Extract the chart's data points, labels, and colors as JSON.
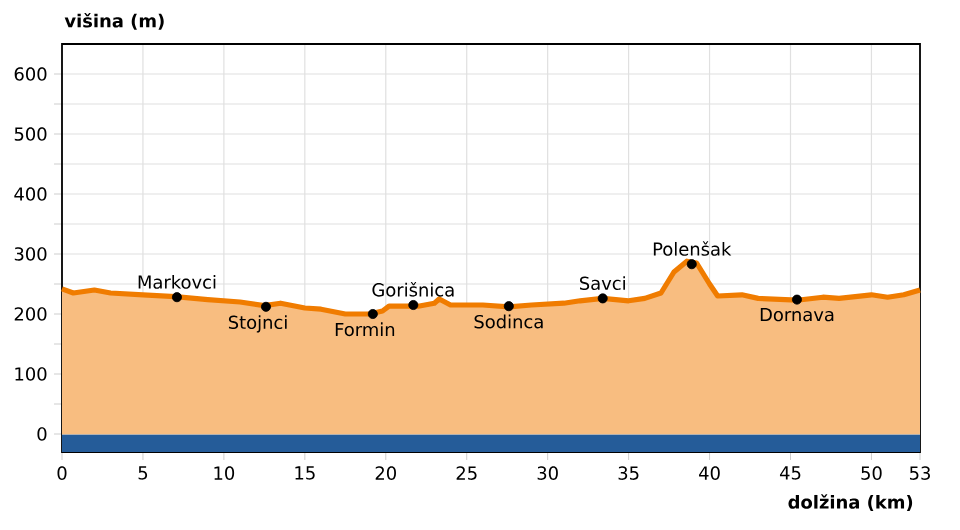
{
  "chart_data": {
    "type": "area",
    "xlabel": "dolžina (km)",
    "ylabel": "višina (m)",
    "x": [
      0,
      0.7,
      2,
      3,
      5,
      7,
      9,
      11,
      12.5,
      13.5,
      15,
      16,
      17.5,
      19,
      19.8,
      20.2,
      22,
      23,
      23.3,
      24,
      26,
      27.6,
      29,
      31,
      32,
      33.4,
      35,
      36,
      37,
      37.8,
      38.6,
      39.2,
      40,
      40.5,
      42,
      43,
      45.4,
      47,
      48,
      50,
      51,
      52,
      53
    ],
    "series": [
      {
        "color": "#f07c00",
        "values": [
          242,
          235,
          240,
          235,
          232,
          229,
          224,
          220,
          214,
          218,
          210,
          208,
          200,
          200,
          205,
          213,
          213,
          218,
          225,
          215,
          215,
          212,
          215,
          218,
          222,
          226,
          222,
          226,
          235,
          270,
          288,
          285,
          250,
          230,
          232,
          226,
          223,
          228,
          226,
          232,
          228,
          232,
          240
        ]
      },
      {
        "type": "scatter",
        "marker": "circle",
        "color": "#000000",
        "x": [
          7.1,
          12.6,
          19.2,
          21.7,
          27.6,
          33.4,
          38.9,
          45.4
        ],
        "values": [
          228,
          212,
          200,
          215,
          213,
          226,
          283,
          224
        ]
      }
    ],
    "annotations": [
      {
        "text": "Markovci",
        "x": 7.1,
        "y": 228
      },
      {
        "text": "Stojnci",
        "x": 12.6,
        "y": 212
      },
      {
        "text": "Formin",
        "x": 19.2,
        "y": 200
      },
      {
        "text": "Gorišnica",
        "x": 21.7,
        "y": 215
      },
      {
        "text": "Sodinca",
        "x": 27.6,
        "y": 213
      },
      {
        "text": "Savci",
        "x": 33.4,
        "y": 226
      },
      {
        "text": "Polenšak",
        "x": 38.9,
        "y": 283
      },
      {
        "text": "Dornava",
        "x": 45.4,
        "y": 224
      }
    ],
    "bands": [
      {
        "axis": "y",
        "from": -30,
        "to": 0,
        "color": "#255c99"
      }
    ],
    "xlim": [
      0,
      53
    ],
    "ylim": [
      -30,
      650
    ],
    "xticks": [
      0,
      5,
      10,
      15,
      20,
      25,
      30,
      35,
      40,
      45,
      50,
      53
    ],
    "yticks": [
      0,
      {
        "value": 50,
        "label": null
      },
      100,
      {
        "value": 150,
        "label": null
      },
      200,
      {
        "value": 250,
        "label": null
      },
      300,
      {
        "value": 350,
        "label": null
      },
      400,
      {
        "value": 450,
        "label": null
      },
      500,
      {
        "value": 550,
        "label": null
      },
      600
    ],
    "grid": true
  }
}
